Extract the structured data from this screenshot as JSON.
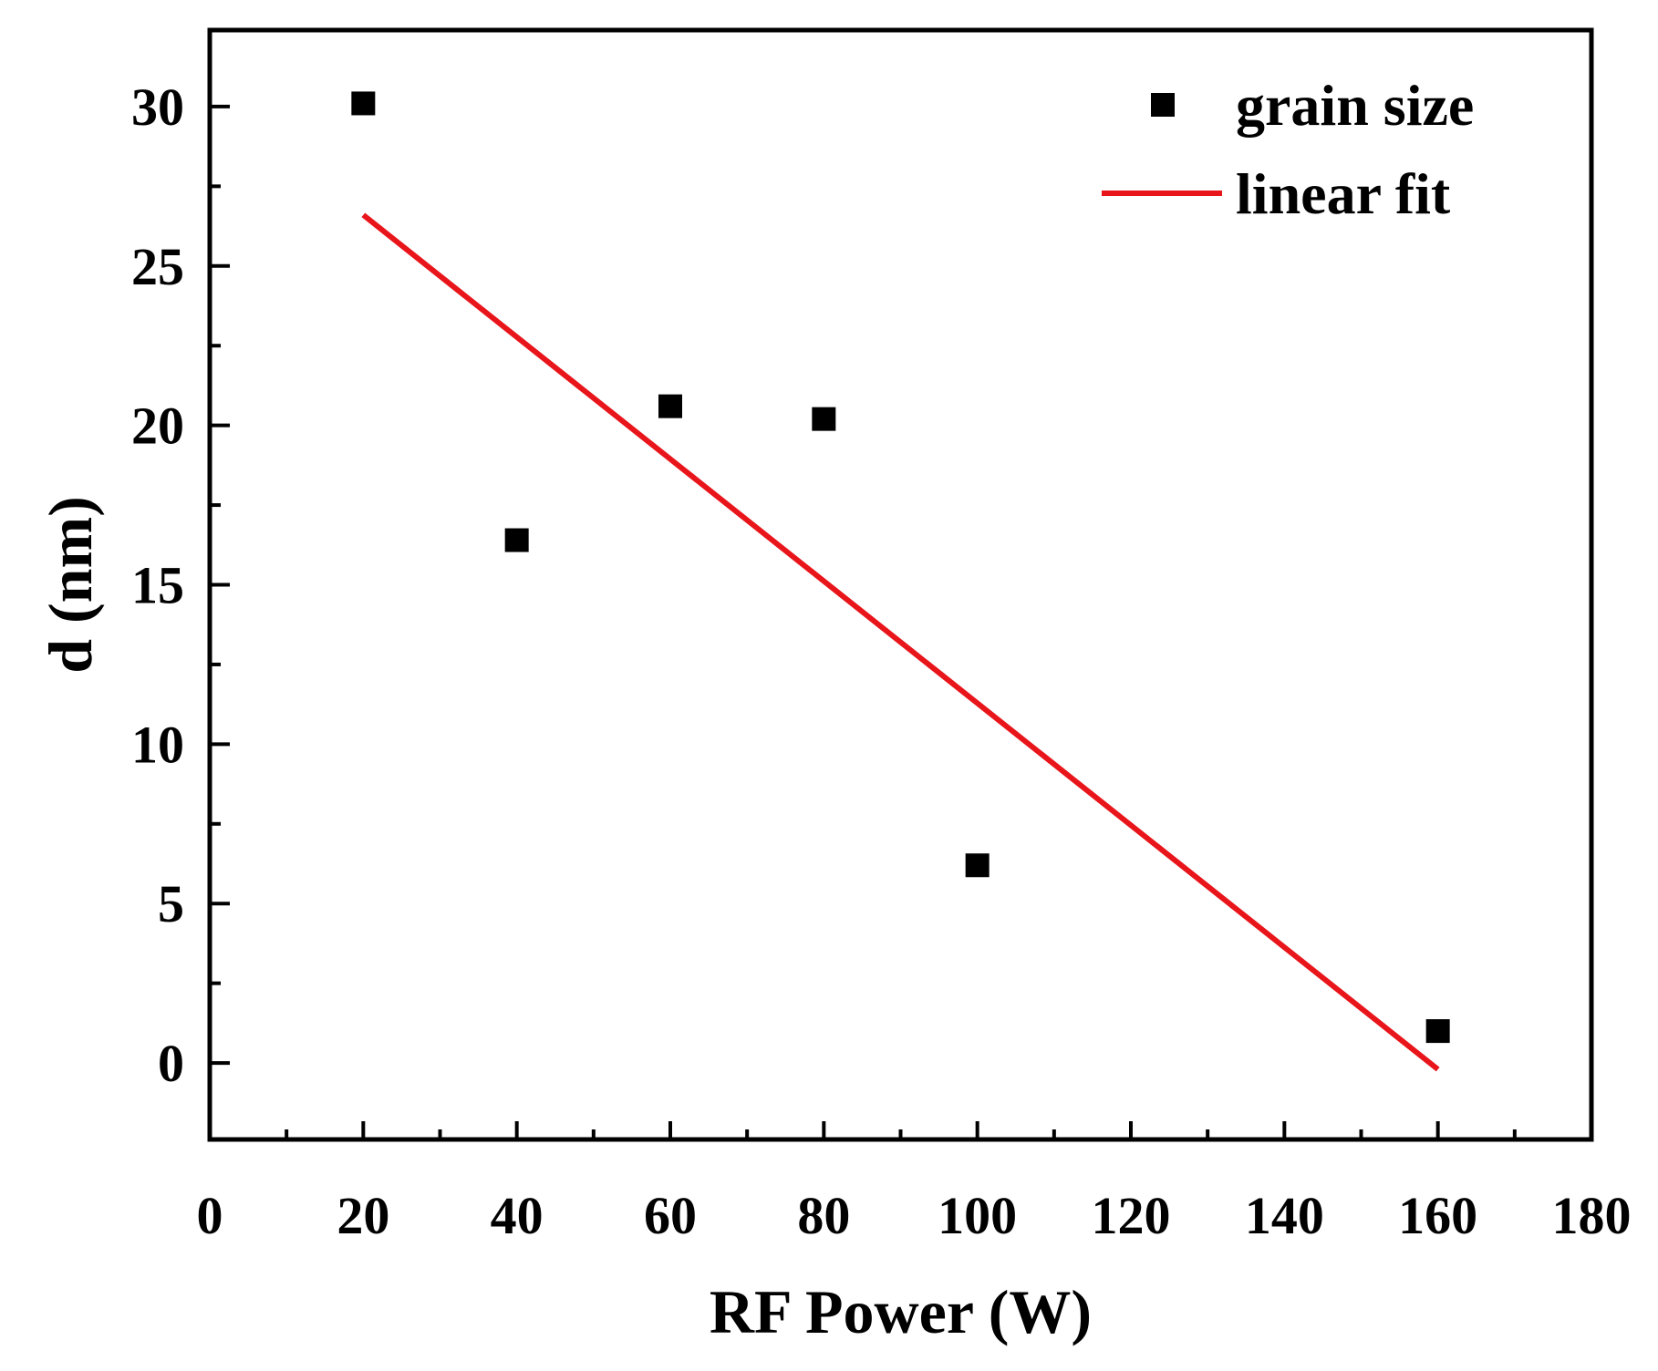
{
  "chart_data": {
    "type": "scatter",
    "title": "",
    "xlabel": "RF Power (W)",
    "ylabel": "d (nm)",
    "xlim": [
      0,
      180
    ],
    "ylim": [
      -2.4,
      32.4
    ],
    "x_ticks": [
      0,
      20,
      40,
      60,
      80,
      100,
      120,
      140,
      160,
      180
    ],
    "x_tick_labels": [
      "0",
      "20",
      "40",
      "60",
      "80",
      "100",
      "120",
      "140",
      "160",
      "180"
    ],
    "y_ticks": [
      0,
      5,
      10,
      15,
      20,
      25,
      30
    ],
    "y_tick_labels": [
      "0",
      "5",
      "10",
      "15",
      "20",
      "25",
      "30"
    ],
    "grid": false,
    "legend_position": "top-right",
    "series": [
      {
        "name": "grain size",
        "kind": "scatter",
        "marker": "square",
        "color": "#000000",
        "x": [
          20,
          40,
          60,
          80,
          100,
          160
        ],
        "y": [
          30.1,
          16.4,
          20.6,
          20.2,
          6.2,
          1.0
        ]
      },
      {
        "name": "linear fit",
        "kind": "line",
        "color": "#e8151b",
        "x": [
          20,
          160
        ],
        "y": [
          26.6,
          -0.2
        ]
      }
    ]
  }
}
